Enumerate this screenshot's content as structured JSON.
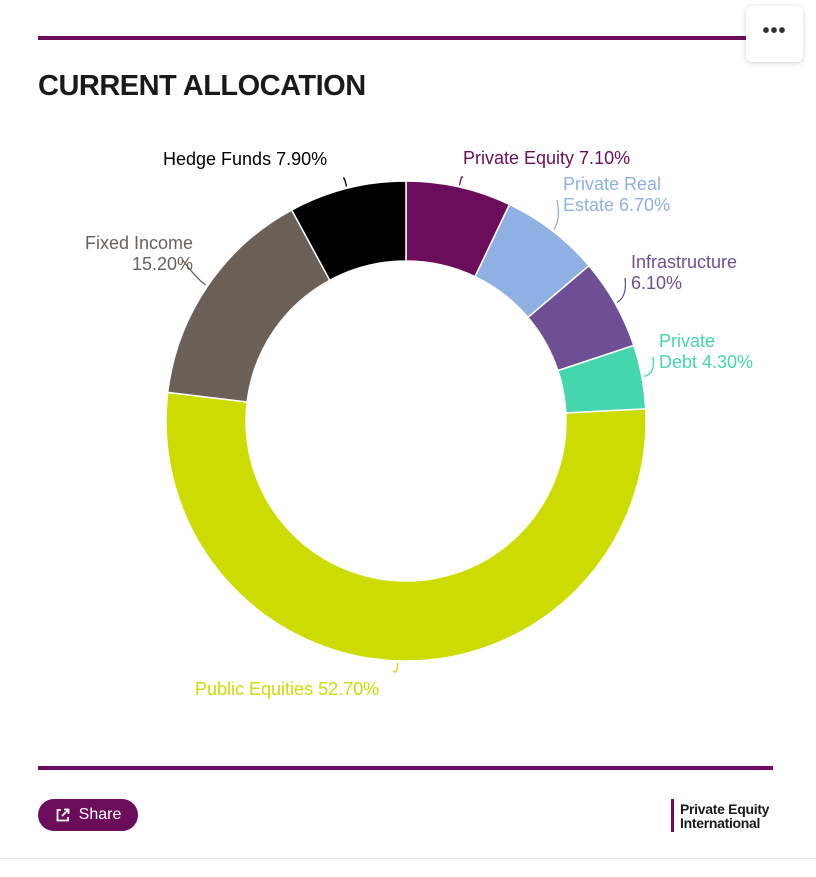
{
  "title": "CURRENT ALLOCATION",
  "menu": {
    "icon": "more-horizontal-icon",
    "label": "•••"
  },
  "share": {
    "label": "Share",
    "icon": "share-icon"
  },
  "logo": {
    "line1": "Private Equity",
    "line2": "International"
  },
  "colors": {
    "accent": "#6b0d5a"
  },
  "chart_data": {
    "type": "pie",
    "title": "CURRENT ALLOCATION",
    "donut": true,
    "slices": [
      {
        "label": "Private Equity",
        "value": 7.1,
        "display": "7.10%",
        "color": "#6b0d5a"
      },
      {
        "label": "Private Real Estate",
        "value": 6.7,
        "display": "6.70%",
        "color": "#8fb0e3"
      },
      {
        "label": "Infrastructure",
        "value": 6.1,
        "display": "6.10%",
        "color": "#6e4f93"
      },
      {
        "label": "Private Debt",
        "value": 4.3,
        "display": "4.30%",
        "color": "#45d6ad"
      },
      {
        "label": "Public Equities",
        "value": 52.7,
        "display": "52.70%",
        "color": "#cddc00"
      },
      {
        "label": "Fixed Income",
        "value": 15.2,
        "display": "15.20%",
        "color": "#6b6058"
      },
      {
        "label": "Hedge Funds",
        "value": 7.9,
        "display": "7.90%",
        "color": "#000000"
      }
    ],
    "label_lines": [
      [
        "Private Equity 7.10%"
      ],
      [
        "Private Real",
        "Estate 6.70%"
      ],
      [
        "Infrastructure",
        "6.10%"
      ],
      [
        "Private",
        "Debt 4.30%"
      ],
      [
        "Public Equities 52.70%"
      ],
      [
        "Fixed Income",
        "15.20%"
      ],
      [
        "Hedge Funds 7.90%"
      ]
    ]
  }
}
